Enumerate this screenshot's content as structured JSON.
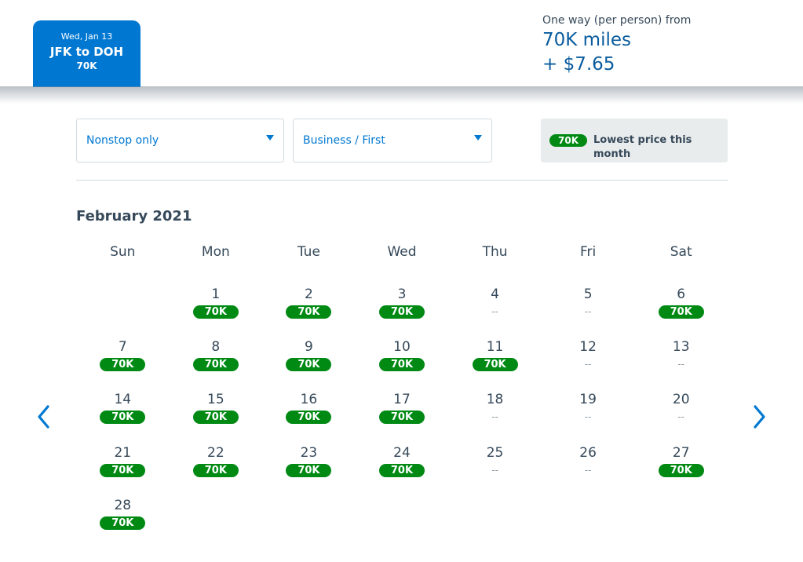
{
  "trip_tab": {
    "date": "Wed, Jan 13",
    "route": "JFK to DOH",
    "price": "70K"
  },
  "fare_summary": {
    "label": "One way (per person) from",
    "miles": "70K miles",
    "tax": "+ $7.65"
  },
  "filters": {
    "stops": "Nonstop only",
    "cabin": "Business / First"
  },
  "lowest_price": {
    "badge": "70K",
    "label": "Lowest price this month"
  },
  "calendar": {
    "month": "February 2021",
    "weekdays": [
      "Sun",
      "Mon",
      "Tue",
      "Wed",
      "Thu",
      "Fri",
      "Sat"
    ],
    "days": [
      {
        "day": "1",
        "price": "70K"
      },
      {
        "day": "2",
        "price": "70K"
      },
      {
        "day": "3",
        "price": "70K"
      },
      {
        "day": "4",
        "price": "--"
      },
      {
        "day": "5",
        "price": "--"
      },
      {
        "day": "6",
        "price": "70K"
      },
      {
        "day": "7",
        "price": "70K"
      },
      {
        "day": "8",
        "price": "70K"
      },
      {
        "day": "9",
        "price": "70K"
      },
      {
        "day": "10",
        "price": "70K"
      },
      {
        "day": "11",
        "price": "70K"
      },
      {
        "day": "12",
        "price": "--"
      },
      {
        "day": "13",
        "price": "--"
      },
      {
        "day": "14",
        "price": "70K"
      },
      {
        "day": "15",
        "price": "70K"
      },
      {
        "day": "16",
        "price": "70K"
      },
      {
        "day": "17",
        "price": "70K"
      },
      {
        "day": "18",
        "price": "--"
      },
      {
        "day": "19",
        "price": "--"
      },
      {
        "day": "20",
        "price": "--"
      },
      {
        "day": "21",
        "price": "70K"
      },
      {
        "day": "22",
        "price": "70K"
      },
      {
        "day": "23",
        "price": "70K"
      },
      {
        "day": "24",
        "price": "70K"
      },
      {
        "day": "25",
        "price": "--"
      },
      {
        "day": "26",
        "price": "--"
      },
      {
        "day": "27",
        "price": "70K"
      },
      {
        "day": "28",
        "price": "70K"
      }
    ]
  },
  "nav": {
    "prev_icon": "chevron-left-icon",
    "next_icon": "chevron-right-icon"
  },
  "colors": {
    "accent": "#0078d2",
    "price_badge": "#008a14",
    "miles_text": "#0a5c9e"
  }
}
